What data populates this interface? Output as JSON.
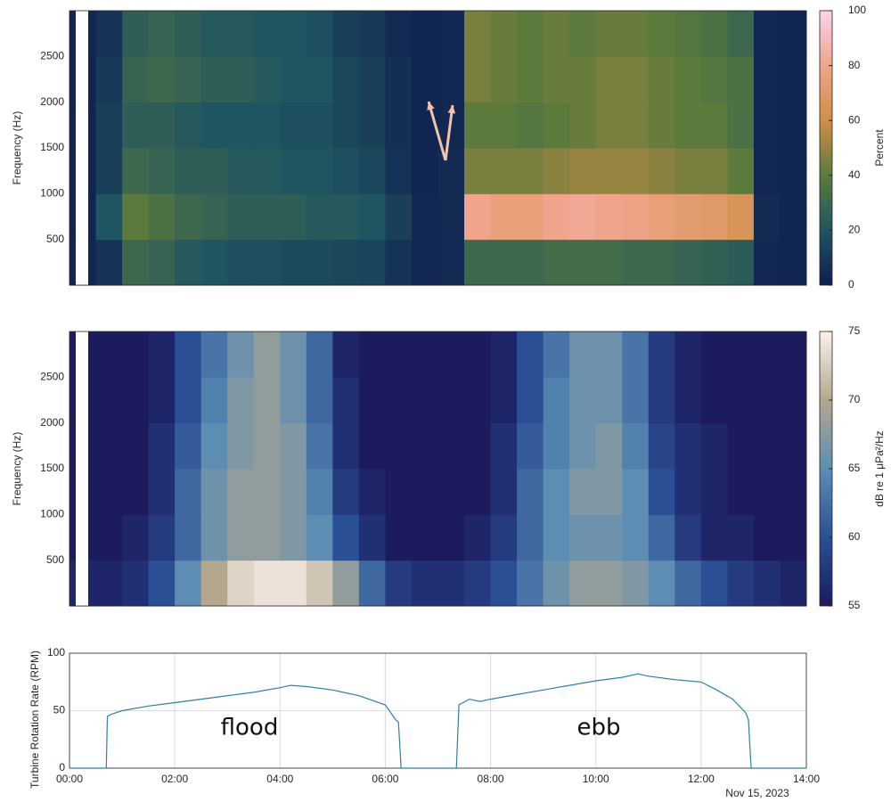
{
  "chart_data": [
    {
      "type": "heatmap",
      "ylabel": "Frequency (Hz)",
      "colorbar_label": "Percent",
      "xlim": [
        0,
        14
      ],
      "ylim": [
        0,
        3000
      ],
      "yticks": [
        500,
        1000,
        1500,
        2000,
        2500
      ],
      "clim": [
        0,
        100
      ],
      "cticks": [
        0,
        20,
        40,
        60,
        80,
        100
      ],
      "colors": [
        "#0f1d4f",
        "#1f5560",
        "#5c7a3c",
        "#d08f45",
        "#f0a48c",
        "#fbd2ec"
      ],
      "x": [
        0.25,
        0.75,
        1.25,
        1.75,
        2.25,
        2.75,
        3.25,
        3.75,
        4.25,
        4.75,
        5.25,
        5.75,
        6.25,
        6.75,
        7.25,
        7.75,
        8.25,
        8.75,
        9.25,
        9.75,
        10.25,
        10.75,
        11.25,
        11.75,
        12.25,
        12.75,
        13.25,
        13.75
      ],
      "y": [
        250,
        750,
        1250,
        1750,
        2250,
        2750
      ],
      "values": [
        [
          3,
          8,
          30,
          28,
          22,
          20,
          18,
          18,
          16,
          16,
          15,
          14,
          8,
          4,
          5,
          30,
          30,
          30,
          32,
          32,
          32,
          30,
          30,
          28,
          26,
          24,
          4,
          3
        ],
        [
          3,
          20,
          40,
          35,
          30,
          28,
          25,
          25,
          25,
          22,
          22,
          20,
          12,
          4,
          5,
          80,
          75,
          75,
          80,
          82,
          80,
          78,
          75,
          72,
          70,
          65,
          5,
          3
        ],
        [
          3,
          12,
          30,
          28,
          25,
          25,
          22,
          22,
          20,
          20,
          18,
          15,
          8,
          3,
          5,
          45,
          45,
          45,
          48,
          50,
          50,
          50,
          48,
          45,
          45,
          40,
          4,
          3
        ],
        [
          3,
          12,
          25,
          25,
          22,
          20,
          20,
          20,
          18,
          18,
          15,
          12,
          6,
          3,
          4,
          40,
          40,
          38,
          40,
          42,
          45,
          45,
          42,
          40,
          40,
          35,
          4,
          3
        ],
        [
          3,
          10,
          28,
          30,
          28,
          25,
          25,
          22,
          20,
          20,
          15,
          12,
          6,
          3,
          4,
          45,
          42,
          40,
          42,
          42,
          45,
          45,
          42,
          40,
          38,
          35,
          4,
          3
        ],
        [
          3,
          8,
          25,
          28,
          25,
          22,
          22,
          20,
          20,
          18,
          12,
          10,
          5,
          3,
          4,
          45,
          42,
          40,
          42,
          40,
          42,
          42,
          40,
          38,
          35,
          30,
          4,
          3
        ]
      ]
    },
    {
      "type": "heatmap",
      "ylabel": "Frequency (Hz)",
      "colorbar_label": "dB re 1 μPa²/Hz",
      "xlim": [
        0,
        14
      ],
      "ylim": [
        0,
        3000
      ],
      "yticks": [
        500,
        1000,
        1500,
        2000,
        2500
      ],
      "clim": [
        55,
        75
      ],
      "cticks": [
        55,
        60,
        65,
        70,
        75
      ],
      "colors": [
        "#1b1b5e",
        "#2b4f95",
        "#5d8db3",
        "#b3a88e",
        "#fcf1ec"
      ],
      "x": [
        0.25,
        0.75,
        1.25,
        1.75,
        2.25,
        2.75,
        3.25,
        3.75,
        4.25,
        4.75,
        5.25,
        5.75,
        6.25,
        6.75,
        7.25,
        7.75,
        8.25,
        8.75,
        9.25,
        9.75,
        10.25,
        10.75,
        11.25,
        11.75,
        12.25,
        12.75,
        13.25,
        13.75
      ],
      "y": [
        250,
        750,
        1250,
        1750,
        2250,
        2750
      ],
      "values": [
        [
          56,
          56,
          57,
          60,
          65,
          70,
          73,
          74,
          74,
          72,
          68,
          62,
          58,
          57,
          57,
          58,
          60,
          63,
          66,
          68,
          68,
          67,
          65,
          62,
          60,
          58,
          57,
          56
        ],
        [
          55,
          55,
          56,
          58,
          62,
          66,
          68,
          68,
          67,
          65,
          60,
          57,
          55,
          55,
          55,
          56,
          58,
          62,
          65,
          66,
          66,
          65,
          62,
          58,
          56,
          56,
          55,
          55
        ],
        [
          55,
          55,
          55,
          57,
          62,
          66,
          68,
          68,
          67,
          64,
          58,
          56,
          55,
          55,
          55,
          55,
          57,
          62,
          65,
          67,
          67,
          65,
          60,
          57,
          56,
          55,
          55,
          55
        ],
        [
          55,
          55,
          55,
          57,
          61,
          65,
          67,
          68,
          67,
          63,
          57,
          55,
          55,
          55,
          55,
          55,
          57,
          61,
          64,
          66,
          67,
          64,
          59,
          57,
          56,
          55,
          55,
          55
        ],
        [
          55,
          55,
          55,
          56,
          60,
          64,
          67,
          68,
          66,
          62,
          57,
          55,
          55,
          55,
          55,
          55,
          56,
          60,
          64,
          66,
          66,
          63,
          58,
          56,
          55,
          55,
          55,
          55
        ],
        [
          55,
          55,
          55,
          56,
          60,
          63,
          66,
          68,
          66,
          62,
          56,
          55,
          55,
          55,
          55,
          55,
          56,
          60,
          63,
          66,
          66,
          63,
          58,
          56,
          55,
          55,
          55,
          55
        ]
      ]
    },
    {
      "type": "line",
      "ylabel": "Turbine Rotation Rate (RPM)",
      "color": "#2f7fa8",
      "grid": true,
      "xlim": [
        0,
        14
      ],
      "xticks": [
        {
          "value": 0,
          "label": "00:00"
        },
        {
          "value": 2,
          "label": "02:00"
        },
        {
          "value": 4,
          "label": "04:00"
        },
        {
          "value": 6,
          "label": "06:00"
        },
        {
          "value": 8,
          "label": "08:00"
        },
        {
          "value": 10,
          "label": "10:00"
        },
        {
          "value": 12,
          "label": "12:00"
        },
        {
          "value": 14,
          "label": "14:00"
        }
      ],
      "date_label": "Nov 15, 2023",
      "ylim": [
        0,
        100
      ],
      "yticks": [
        0,
        50,
        100
      ],
      "annotations": [
        "flood",
        "ebb"
      ],
      "x": [
        0,
        0.7,
        0.72,
        0.8,
        1,
        1.5,
        2,
        2.5,
        3,
        3.5,
        4,
        4.2,
        4.5,
        5,
        5.5,
        6,
        6.2,
        6.25,
        6.3,
        7,
        7.35,
        7.4,
        7.6,
        7.8,
        8,
        8.5,
        9,
        9.5,
        10,
        10.5,
        10.8,
        11,
        11.5,
        12,
        12.3,
        12.6,
        12.85,
        12.9,
        12.95,
        14
      ],
      "values": [
        0,
        0,
        45,
        47,
        50,
        54,
        57,
        60,
        63,
        66,
        70,
        72,
        71,
        68,
        63,
        55,
        42,
        40,
        0,
        0,
        0,
        55,
        60,
        58,
        60,
        64,
        68,
        72,
        76,
        79,
        82,
        80,
        77,
        75,
        68,
        60,
        48,
        42,
        0,
        0
      ]
    }
  ]
}
